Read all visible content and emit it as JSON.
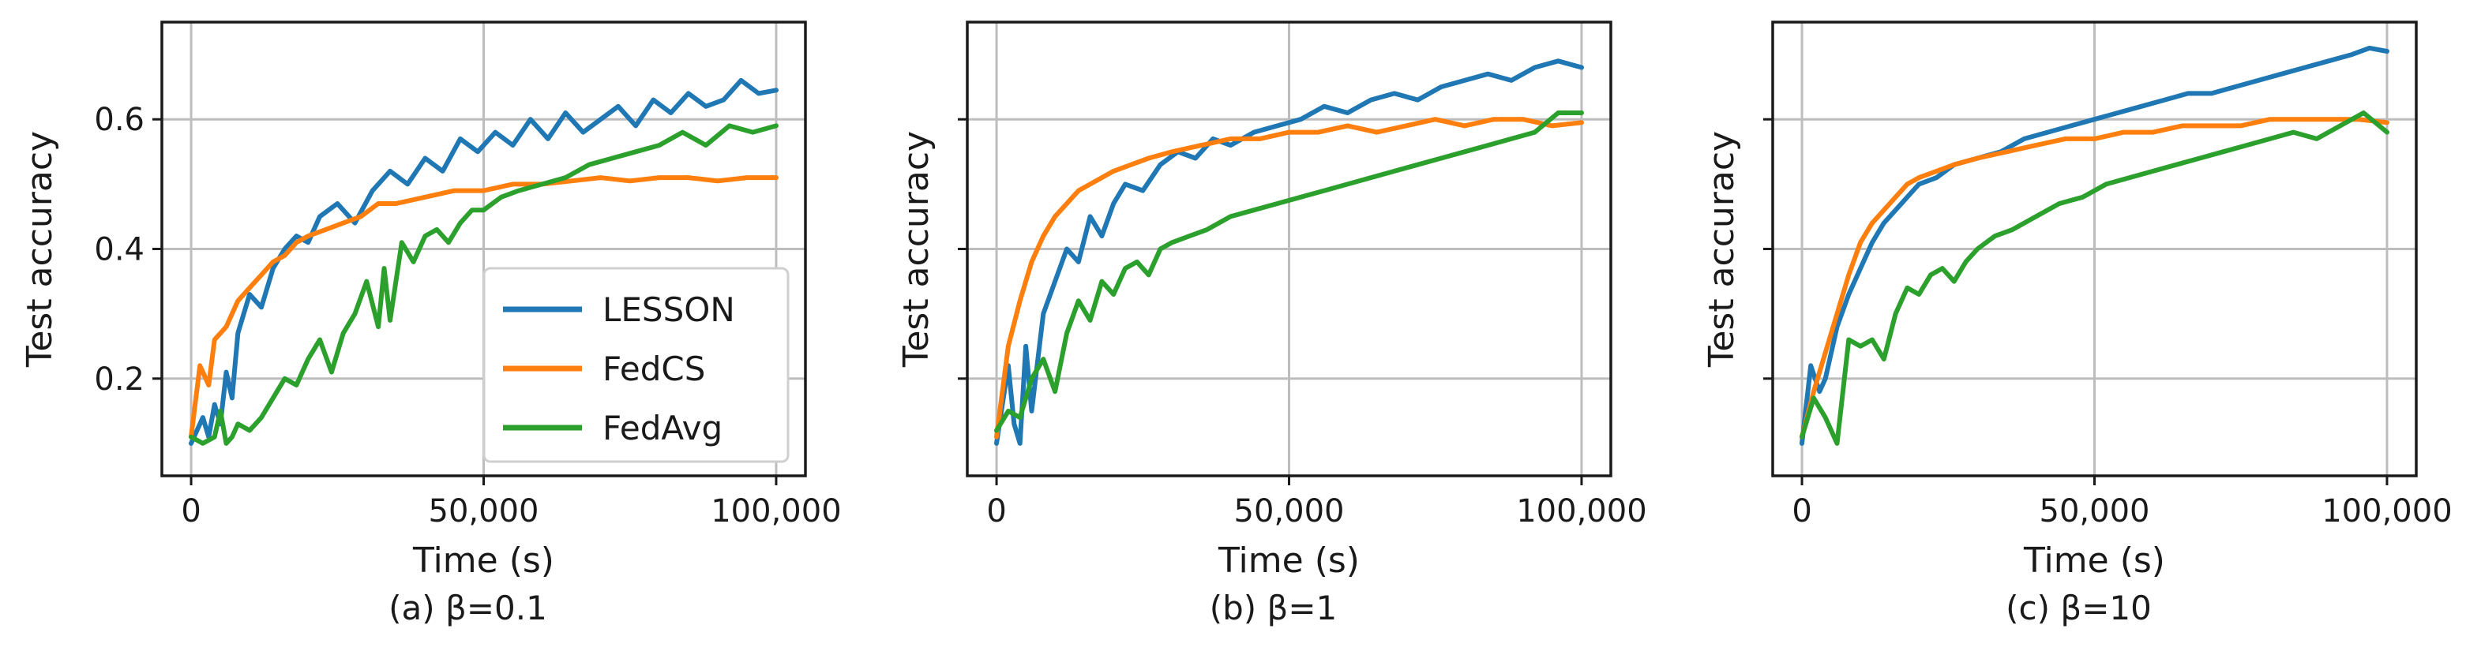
{
  "colors": {
    "LESSON": "#1f77b4",
    "FedCS": "#ff7f0e",
    "FedAvg": "#2ca02c"
  },
  "chart_data": [
    {
      "type": "line",
      "caption": "(a) β=0.1",
      "xlabel": "Time (s)",
      "ylabel": "Test accuracy",
      "xlim": [
        -5000,
        105000
      ],
      "ylim": [
        0.05,
        0.75
      ],
      "xticks": [
        0,
        50000,
        100000
      ],
      "xtick_labels": [
        "0",
        "50,000",
        "100,000"
      ],
      "yticks": [
        0.2,
        0.4,
        0.6
      ],
      "ytick_labels": [
        "0.2",
        "0.4",
        "0.6"
      ],
      "grid": true,
      "legend": {
        "position": "lower-right",
        "entries": [
          "LESSON",
          "FedCS",
          "FedAvg"
        ]
      },
      "series": [
        {
          "name": "LESSON",
          "color": "#1f77b4",
          "x": [
            0,
            2000,
            3000,
            4000,
            5000,
            6000,
            7000,
            8000,
            10000,
            12000,
            14000,
            16000,
            18000,
            20000,
            22000,
            25000,
            28000,
            31000,
            34000,
            37000,
            40000,
            43000,
            46000,
            49000,
            52000,
            55000,
            58000,
            61000,
            64000,
            67000,
            70000,
            73000,
            76000,
            79000,
            82000,
            85000,
            88000,
            91000,
            94000,
            97000,
            100000
          ],
          "y": [
            0.1,
            0.14,
            0.11,
            0.16,
            0.13,
            0.21,
            0.17,
            0.27,
            0.33,
            0.31,
            0.37,
            0.4,
            0.42,
            0.41,
            0.45,
            0.47,
            0.44,
            0.49,
            0.52,
            0.5,
            0.54,
            0.52,
            0.57,
            0.55,
            0.58,
            0.56,
            0.6,
            0.57,
            0.61,
            0.58,
            0.6,
            0.62,
            0.59,
            0.63,
            0.61,
            0.64,
            0.62,
            0.63,
            0.66,
            0.64,
            0.645
          ]
        },
        {
          "name": "FedCS",
          "color": "#ff7f0e",
          "x": [
            0,
            1500,
            3000,
            4000,
            6000,
            8000,
            10000,
            12000,
            14000,
            16000,
            18000,
            20000,
            23000,
            26000,
            29000,
            32000,
            35000,
            40000,
            45000,
            50000,
            55000,
            60000,
            65000,
            70000,
            75000,
            80000,
            85000,
            90000,
            95000,
            100000
          ],
          "y": [
            0.11,
            0.22,
            0.19,
            0.26,
            0.28,
            0.32,
            0.34,
            0.36,
            0.38,
            0.39,
            0.41,
            0.42,
            0.43,
            0.44,
            0.45,
            0.47,
            0.47,
            0.48,
            0.49,
            0.49,
            0.5,
            0.5,
            0.505,
            0.51,
            0.505,
            0.51,
            0.51,
            0.505,
            0.51,
            0.51
          ]
        },
        {
          "name": "FedAvg",
          "color": "#2ca02c",
          "x": [
            0,
            2000,
            4000,
            5000,
            6000,
            7000,
            8000,
            10000,
            12000,
            14000,
            16000,
            18000,
            20000,
            22000,
            24000,
            26000,
            28000,
            30000,
            32000,
            33000,
            34000,
            36000,
            38000,
            40000,
            42000,
            44000,
            46000,
            48000,
            50000,
            53000,
            56000,
            60000,
            64000,
            68000,
            72000,
            76000,
            80000,
            84000,
            88000,
            92000,
            96000,
            100000
          ],
          "y": [
            0.11,
            0.1,
            0.11,
            0.15,
            0.1,
            0.11,
            0.13,
            0.12,
            0.14,
            0.17,
            0.2,
            0.19,
            0.23,
            0.26,
            0.21,
            0.27,
            0.3,
            0.35,
            0.28,
            0.37,
            0.29,
            0.41,
            0.38,
            0.42,
            0.43,
            0.41,
            0.44,
            0.46,
            0.46,
            0.48,
            0.49,
            0.5,
            0.51,
            0.53,
            0.54,
            0.55,
            0.56,
            0.58,
            0.56,
            0.59,
            0.58,
            0.59
          ]
        }
      ]
    },
    {
      "type": "line",
      "caption": "(b) β=1",
      "xlabel": "Time (s)",
      "ylabel": "Test accuracy",
      "xlim": [
        -5000,
        105000
      ],
      "ylim": [
        0.05,
        0.75
      ],
      "xticks": [
        0,
        50000,
        100000
      ],
      "xtick_labels": [
        "0",
        "50,000",
        "100,000"
      ],
      "yticks": [
        0.2,
        0.4,
        0.6
      ],
      "ytick_labels": [],
      "grid": true,
      "series": [
        {
          "name": "LESSON",
          "color": "#1f77b4",
          "x": [
            0,
            2000,
            3000,
            4000,
            5000,
            6000,
            8000,
            10000,
            12000,
            14000,
            16000,
            18000,
            20000,
            22000,
            25000,
            28000,
            31000,
            34000,
            37000,
            40000,
            44000,
            48000,
            52000,
            56000,
            60000,
            64000,
            68000,
            72000,
            76000,
            80000,
            84000,
            88000,
            92000,
            96000,
            100000
          ],
          "y": [
            0.1,
            0.22,
            0.13,
            0.1,
            0.25,
            0.15,
            0.3,
            0.35,
            0.4,
            0.38,
            0.45,
            0.42,
            0.47,
            0.5,
            0.49,
            0.53,
            0.55,
            0.54,
            0.57,
            0.56,
            0.58,
            0.59,
            0.6,
            0.62,
            0.61,
            0.63,
            0.64,
            0.63,
            0.65,
            0.66,
            0.67,
            0.66,
            0.68,
            0.69,
            0.68
          ]
        },
        {
          "name": "FedCS",
          "color": "#ff7f0e",
          "x": [
            0,
            2000,
            4000,
            6000,
            8000,
            10000,
            12000,
            14000,
            16000,
            18000,
            20000,
            23000,
            26000,
            30000,
            35000,
            40000,
            45000,
            50000,
            55000,
            60000,
            65000,
            70000,
            75000,
            80000,
            85000,
            90000,
            95000,
            100000
          ],
          "y": [
            0.11,
            0.25,
            0.32,
            0.38,
            0.42,
            0.45,
            0.47,
            0.49,
            0.5,
            0.51,
            0.52,
            0.53,
            0.54,
            0.55,
            0.56,
            0.57,
            0.57,
            0.58,
            0.58,
            0.59,
            0.58,
            0.59,
            0.6,
            0.59,
            0.6,
            0.6,
            0.59,
            0.595
          ]
        },
        {
          "name": "FedAvg",
          "color": "#2ca02c",
          "x": [
            0,
            2000,
            4000,
            6000,
            8000,
            10000,
            12000,
            14000,
            16000,
            18000,
            20000,
            22000,
            24000,
            26000,
            28000,
            30000,
            33000,
            36000,
            40000,
            44000,
            48000,
            52000,
            56000,
            60000,
            64000,
            68000,
            72000,
            76000,
            80000,
            84000,
            88000,
            92000,
            96000,
            100000
          ],
          "y": [
            0.12,
            0.15,
            0.14,
            0.2,
            0.23,
            0.18,
            0.27,
            0.32,
            0.29,
            0.35,
            0.33,
            0.37,
            0.38,
            0.36,
            0.4,
            0.41,
            0.42,
            0.43,
            0.45,
            0.46,
            0.47,
            0.48,
            0.49,
            0.5,
            0.51,
            0.52,
            0.53,
            0.54,
            0.55,
            0.56,
            0.57,
            0.58,
            0.61,
            0.61
          ]
        }
      ]
    },
    {
      "type": "line",
      "caption": "(c) β=10",
      "xlabel": "Time (s)",
      "ylabel": "Test accuracy",
      "xlim": [
        -5000,
        105000
      ],
      "ylim": [
        0.05,
        0.75
      ],
      "xticks": [
        0,
        50000,
        100000
      ],
      "xtick_labels": [
        "0",
        "50,000",
        "100,000"
      ],
      "yticks": [
        0.2,
        0.4,
        0.6
      ],
      "ytick_labels": [],
      "grid": true,
      "series": [
        {
          "name": "LESSON",
          "color": "#1f77b4",
          "x": [
            0,
            1500,
            3000,
            4000,
            6000,
            8000,
            10000,
            12000,
            14000,
            16000,
            18000,
            20000,
            23000,
            26000,
            30000,
            34000,
            38000,
            42000,
            46000,
            50000,
            54000,
            58000,
            62000,
            66000,
            70000,
            74000,
            78000,
            82000,
            86000,
            90000,
            94000,
            97000,
            100000
          ],
          "y": [
            0.1,
            0.22,
            0.18,
            0.2,
            0.28,
            0.33,
            0.37,
            0.41,
            0.44,
            0.46,
            0.48,
            0.5,
            0.51,
            0.53,
            0.54,
            0.55,
            0.57,
            0.58,
            0.59,
            0.6,
            0.61,
            0.62,
            0.63,
            0.64,
            0.64,
            0.65,
            0.66,
            0.67,
            0.68,
            0.69,
            0.7,
            0.71,
            0.705
          ]
        },
        {
          "name": "FedCS",
          "color": "#ff7f0e",
          "x": [
            0,
            2000,
            4000,
            6000,
            8000,
            10000,
            12000,
            14000,
            16000,
            18000,
            20000,
            23000,
            26000,
            30000,
            35000,
            40000,
            45000,
            50000,
            55000,
            60000,
            65000,
            70000,
            75000,
            80000,
            85000,
            90000,
            95000,
            100000
          ],
          "y": [
            0.11,
            0.18,
            0.24,
            0.3,
            0.36,
            0.41,
            0.44,
            0.46,
            0.48,
            0.5,
            0.51,
            0.52,
            0.53,
            0.54,
            0.55,
            0.56,
            0.57,
            0.57,
            0.58,
            0.58,
            0.59,
            0.59,
            0.59,
            0.6,
            0.6,
            0.6,
            0.6,
            0.595
          ]
        },
        {
          "name": "FedAvg",
          "color": "#2ca02c",
          "x": [
            0,
            2000,
            4000,
            6000,
            8000,
            10000,
            12000,
            14000,
            16000,
            18000,
            20000,
            22000,
            24000,
            26000,
            28000,
            30000,
            33000,
            36000,
            40000,
            44000,
            48000,
            52000,
            56000,
            60000,
            64000,
            68000,
            72000,
            76000,
            80000,
            84000,
            88000,
            92000,
            96000,
            100000
          ],
          "y": [
            0.11,
            0.17,
            0.14,
            0.1,
            0.26,
            0.25,
            0.26,
            0.23,
            0.3,
            0.34,
            0.33,
            0.36,
            0.37,
            0.35,
            0.38,
            0.4,
            0.42,
            0.43,
            0.45,
            0.47,
            0.48,
            0.5,
            0.51,
            0.52,
            0.53,
            0.54,
            0.55,
            0.56,
            0.57,
            0.58,
            0.57,
            0.59,
            0.61,
            0.58
          ]
        }
      ]
    }
  ]
}
